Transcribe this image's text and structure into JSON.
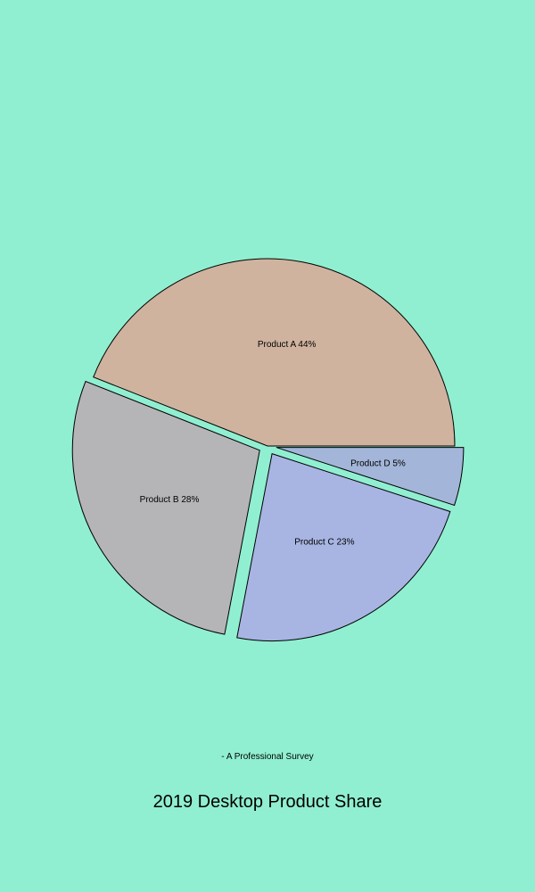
{
  "chart_data": {
    "type": "pie",
    "title": "2019 Desktop Product Share",
    "subtitle": "- A Professional Survey",
    "slices": [
      {
        "label": "Product A",
        "value": 44,
        "color": "#cfb39f",
        "exploded": false
      },
      {
        "label": "Product B",
        "value": 28,
        "color": "#b5b5b8",
        "exploded": true
      },
      {
        "label": "Product C",
        "value": 23,
        "color": "#a8b5e2",
        "exploded": true
      },
      {
        "label": "Product D",
        "value": 5,
        "color": "#a3b5d8",
        "exploded": true
      }
    ],
    "legend": "none"
  },
  "colors": {
    "background": "#90efd0"
  }
}
